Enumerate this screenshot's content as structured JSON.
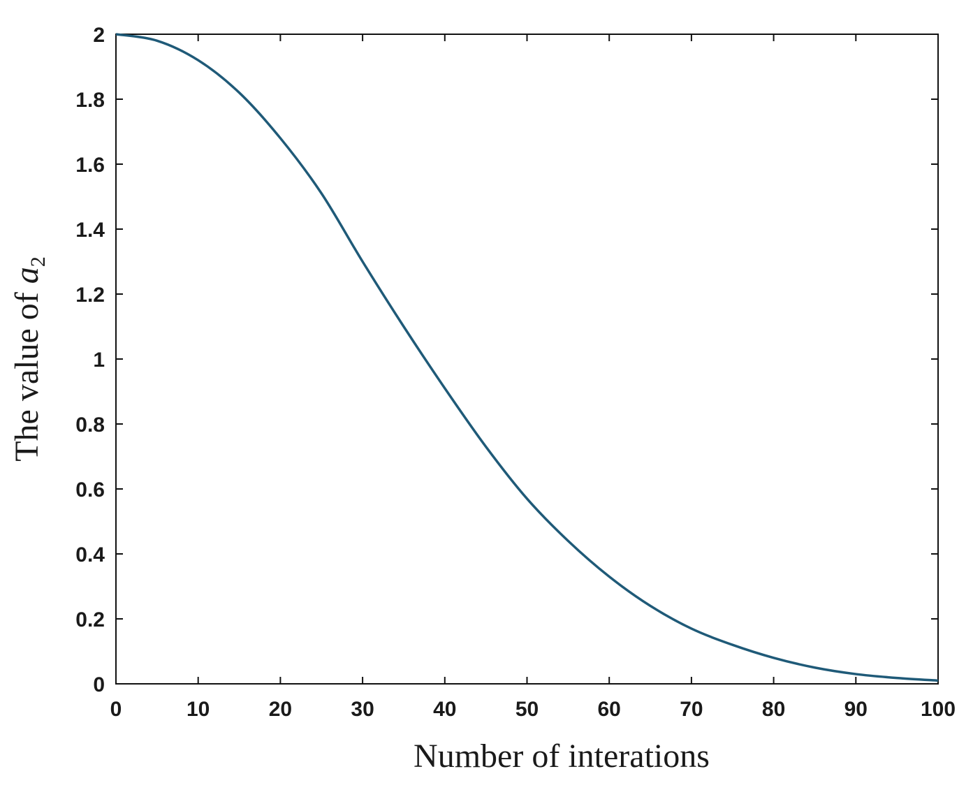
{
  "chart_data": {
    "type": "line",
    "xlabel": "Number of interations",
    "ylabel": {
      "prefix": "The value of",
      "symbol": "a",
      "subscript": "2"
    },
    "xlim": [
      0,
      100
    ],
    "ylim": [
      0,
      2
    ],
    "xticks": [
      "0",
      "10",
      "20",
      "30",
      "40",
      "50",
      "60",
      "70",
      "80",
      "90",
      "100"
    ],
    "yticks": [
      "0",
      "0.2",
      "0.4",
      "0.6",
      "0.8",
      "1",
      "1.2",
      "1.4",
      "1.6",
      "1.8",
      "2"
    ],
    "grid": false,
    "series": [
      {
        "color": "#1f5a78",
        "x": [
          0,
          5,
          10,
          15,
          20,
          25,
          30,
          35,
          40,
          45,
          50,
          55,
          60,
          65,
          70,
          75,
          80,
          85,
          90,
          95,
          100
        ],
        "y": [
          2.0,
          1.98,
          1.92,
          1.82,
          1.68,
          1.51,
          1.3,
          1.1,
          0.91,
          0.73,
          0.57,
          0.44,
          0.33,
          0.24,
          0.17,
          0.12,
          0.08,
          0.05,
          0.03,
          0.018,
          0.01
        ]
      }
    ]
  }
}
